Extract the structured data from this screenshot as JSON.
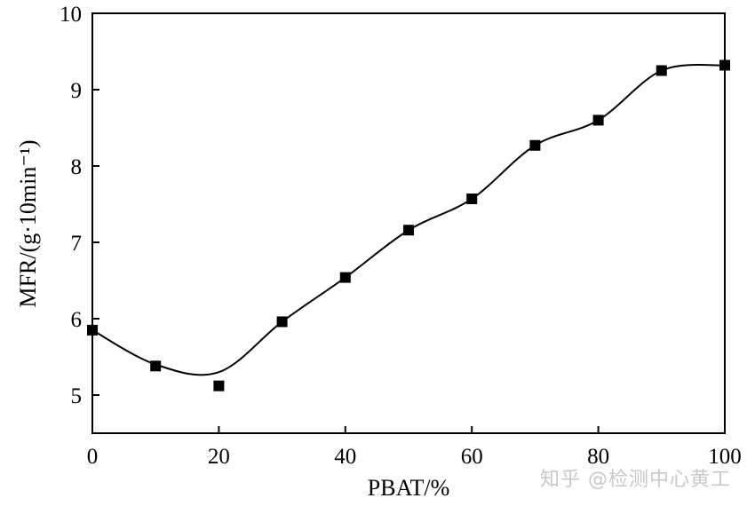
{
  "chart_data": {
    "type": "scatter",
    "title": "",
    "xlabel": "PBAT/%",
    "ylabel": "MFR/(g·10min⁻¹)",
    "xlim": [
      0,
      100
    ],
    "ylim": [
      4.5,
      10
    ],
    "xticks": [
      0,
      20,
      40,
      60,
      80,
      100
    ],
    "yticks": [
      5,
      6,
      7,
      8,
      9,
      10
    ],
    "grid": false,
    "legend": "none",
    "series": [
      {
        "marker": "square",
        "color": "#000000",
        "line": "smooth fit",
        "x": [
          0,
          10,
          20,
          30,
          40,
          50,
          60,
          70,
          80,
          90,
          100
        ],
        "y": [
          5.85,
          5.38,
          5.12,
          5.96,
          6.54,
          7.16,
          7.57,
          8.27,
          8.6,
          9.25,
          9.32
        ]
      }
    ]
  },
  "watermark": "知乎 @检测中心黄工"
}
